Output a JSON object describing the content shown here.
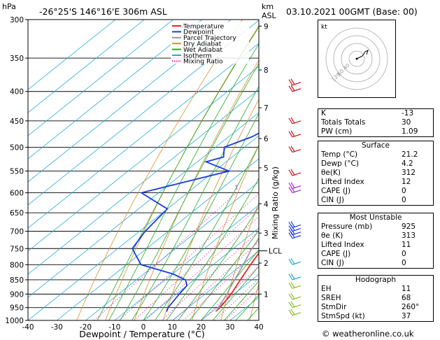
{
  "header": {
    "location": "-26°25'S  146°16'E  306m  ASL",
    "datetime": "03.10.2021  00GMT  (Base: 00)",
    "hpa_label": "hPa",
    "km_label_1": "km",
    "km_label_2": "ASL"
  },
  "footer": {
    "copyright": "© weatheronline.co.uk"
  },
  "chart_data": {
    "type": "line",
    "title": "",
    "xlabel": "Dewpoint / Temperature (°C)",
    "ylabel": "",
    "right_label": "Mixing Ratio (g/kg)",
    "xlim": [
      -40,
      40
    ],
    "ylim": [
      1000,
      300
    ],
    "skew": "skewed log-pressure",
    "grid": true,
    "legend_position": "top-left",
    "pressure_ticks": [
      300,
      350,
      400,
      450,
      500,
      550,
      600,
      650,
      700,
      750,
      800,
      850,
      900,
      950,
      1000
    ],
    "temp_ticks": [
      -40,
      -30,
      -20,
      -10,
      0,
      10,
      20,
      30,
      40
    ],
    "km_ticks": [
      {
        "label": "9",
        "p": 308
      },
      {
        "label": "8",
        "p": 367
      },
      {
        "label": "7",
        "p": 427
      },
      {
        "label": "6",
        "p": 483
      },
      {
        "label": "5",
        "p": 543
      },
      {
        "label": "4",
        "p": 627
      },
      {
        "label": "3",
        "p": 705
      },
      {
        "label": "2",
        "p": 795
      },
      {
        "label": "1",
        "p": 900
      }
    ],
    "lcl": {
      "label": "LCL",
      "p": 757
    },
    "mixing_ratio_labels": [
      "1",
      "2",
      "3",
      "4",
      "6",
      "8",
      "10",
      "15",
      "20",
      "25"
    ],
    "mixing_ratios": [
      1,
      2,
      3,
      4,
      6,
      8,
      10,
      15,
      20,
      25
    ],
    "legend": [
      {
        "name": "Temperature",
        "color": "#ee2222"
      },
      {
        "name": "Dewpoint",
        "color": "#1a3adf"
      },
      {
        "name": "Parcel Trajectory",
        "color": "#999999"
      },
      {
        "name": "Dry Adiabat",
        "color": "#d7902a"
      },
      {
        "name": "Wet Adiabat",
        "color": "#22aa22"
      },
      {
        "name": "Isotherm",
        "color": "#22aadd"
      },
      {
        "name": "Mixing Ratio",
        "color": "#dd22aa"
      }
    ],
    "series": [
      {
        "name": "Temperature",
        "color": "#ee2222",
        "points": [
          [
            300,
            -30
          ],
          [
            315,
            -29
          ],
          [
            330,
            -27.5
          ],
          [
            350,
            -25
          ],
          [
            365,
            -24
          ],
          [
            380,
            -24
          ],
          [
            400,
            -22
          ],
          [
            420,
            -20
          ],
          [
            450,
            -16
          ],
          [
            480,
            -12
          ],
          [
            500,
            -10
          ],
          [
            530,
            -7
          ],
          [
            560,
            -5
          ],
          [
            600,
            -2
          ],
          [
            650,
            2
          ],
          [
            700,
            6
          ],
          [
            725,
            8
          ],
          [
            750,
            10
          ],
          [
            800,
            13
          ],
          [
            850,
            16
          ],
          [
            900,
            19
          ],
          [
            950,
            21
          ],
          [
            965,
            21.2
          ]
        ]
      },
      {
        "name": "Dewpoint",
        "color": "#1a3adf",
        "points": [
          [
            300,
            -38
          ],
          [
            305,
            -38
          ],
          [
            310,
            -49
          ],
          [
            315,
            -36
          ],
          [
            325,
            -40
          ],
          [
            330,
            -36
          ],
          [
            340,
            -40
          ],
          [
            345,
            -36
          ],
          [
            355,
            -40
          ],
          [
            370,
            -37
          ],
          [
            390,
            -30
          ],
          [
            400,
            -34
          ],
          [
            420,
            -34
          ],
          [
            450,
            -38
          ],
          [
            480,
            -42
          ],
          [
            500,
            -47
          ],
          [
            520,
            -43
          ],
          [
            530,
            -47
          ],
          [
            550,
            -35
          ],
          [
            600,
            -56
          ],
          [
            640,
            -40
          ],
          [
            700,
            -38
          ],
          [
            750,
            -35
          ],
          [
            800,
            -25
          ],
          [
            830,
            -10
          ],
          [
            850,
            -3
          ],
          [
            870,
            0
          ],
          [
            900,
            1
          ],
          [
            950,
            3
          ],
          [
            965,
            4.2
          ]
        ]
      },
      {
        "name": "Parcel Trajectory",
        "color": "#999999",
        "points": [
          [
            300,
            -42
          ],
          [
            350,
            -33
          ],
          [
            400,
            -25
          ],
          [
            450,
            -18
          ],
          [
            500,
            -13
          ],
          [
            550,
            -8
          ],
          [
            600,
            -4
          ],
          [
            650,
            -0.5
          ],
          [
            700,
            3
          ],
          [
            757,
            7
          ],
          [
            800,
            10.5
          ],
          [
            850,
            14
          ],
          [
            900,
            17.5
          ],
          [
            950,
            20.5
          ],
          [
            965,
            21.2
          ]
        ]
      }
    ],
    "wind_barbs_p": [
      390,
      400,
      455,
      480,
      510,
      560,
      590,
      600,
      690,
      700,
      710,
      720,
      800,
      850,
      880,
      920,
      950,
      980
    ]
  },
  "hodograph": {
    "unit_label": "kt",
    "ring_labels": [
      "40",
      "60",
      "120"
    ],
    "points": [
      [
        0,
        0
      ],
      [
        4,
        2
      ],
      [
        8,
        4
      ],
      [
        12,
        10
      ],
      [
        16,
        12
      ],
      [
        14,
        6
      ]
    ]
  },
  "indices": {
    "k_label": "K",
    "k_value": "-13",
    "tt_label": "Totals Totals",
    "tt_value": "30",
    "pw_label": "PW (cm)",
    "pw_value": "1.09"
  },
  "surface": {
    "title": "Surface",
    "rows": [
      {
        "label": "Temp (°C)",
        "value": "21.2"
      },
      {
        "label": "Dewp (°C)",
        "value": "4.2"
      },
      {
        "label": "θe(K)",
        "value": "312"
      },
      {
        "label": "Lifted Index",
        "value": "12"
      },
      {
        "label": "CAPE (J)",
        "value": "0"
      },
      {
        "label": "CIN (J)",
        "value": "0"
      }
    ]
  },
  "most_unstable": {
    "title": "Most Unstable",
    "rows": [
      {
        "label": "Pressure (mb)",
        "value": "925"
      },
      {
        "label": "θe (K)",
        "value": "313"
      },
      {
        "label": "Lifted Index",
        "value": "11"
      },
      {
        "label": "CAPE (J)",
        "value": "0"
      },
      {
        "label": "CIN (J)",
        "value": "0"
      }
    ]
  },
  "hodograph_params": {
    "title": "Hodograph",
    "rows": [
      {
        "label": "EH",
        "value": "11"
      },
      {
        "label": "SREH",
        "value": "68"
      },
      {
        "label": "StmDir",
        "value": "260°"
      },
      {
        "label": "StmSpd (kt)",
        "value": "37"
      }
    ]
  }
}
